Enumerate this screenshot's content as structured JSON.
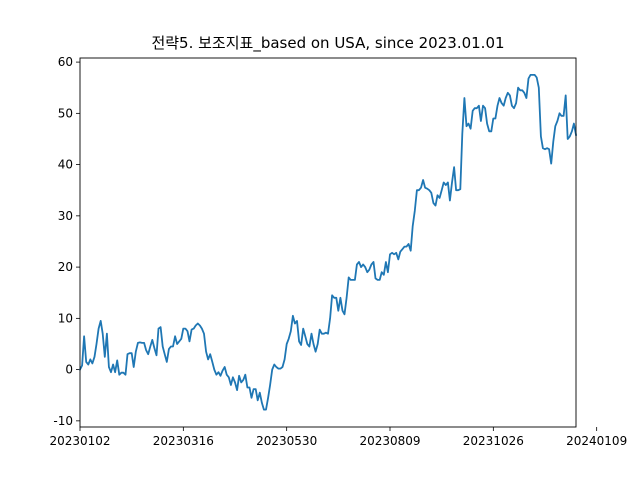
{
  "chart_data": {
    "type": "line",
    "title": "전략5. 보조지표_based on USA, since 2023.01.01",
    "xlabel": "",
    "ylabel": "",
    "grid": false,
    "legend": "none",
    "line_color": "#1f77b4",
    "x_tick_labels": [
      "20230102",
      "20230316",
      "20230530",
      "20230809",
      "20231026",
      "20240109"
    ],
    "x_tick_index": [
      0,
      50,
      100,
      150,
      200,
      250
    ],
    "y_ticks": [
      -10,
      0,
      10,
      20,
      30,
      40,
      50,
      60
    ],
    "ylim": [
      -11.2,
      60.8
    ],
    "series": [
      {
        "values": [
          0.0,
          0.8,
          6.5,
          1.5,
          1.0,
          2.0,
          1.2,
          2.5,
          5.0,
          8.0,
          9.5,
          7.0,
          2.5,
          7.0,
          0.5,
          -0.5,
          1.0,
          -0.5,
          1.8,
          -1.0,
          -0.6,
          -0.6,
          -1.0,
          3.0,
          3.2,
          3.2,
          0.5,
          3.5,
          5.2,
          5.3,
          5.2,
          5.2,
          3.8,
          3.0,
          4.5,
          5.8,
          4.2,
          2.8,
          8.0,
          8.3,
          4.5,
          3.0,
          1.5,
          4.0,
          4.5,
          4.5,
          6.5,
          5.0,
          5.5,
          6.0,
          8.0,
          8.0,
          7.5,
          5.5,
          7.8,
          8.0,
          8.6,
          9.0,
          8.6,
          8.0,
          7.0,
          3.5,
          2.0,
          3.0,
          1.5,
          0.0,
          -1.0,
          -0.5,
          -1.2,
          -0.2,
          0.5,
          -1.0,
          -1.5,
          -3.0,
          -1.5,
          -2.5,
          -4.0,
          -1.2,
          -2.5,
          -2.0,
          -1.0,
          -3.5,
          -3.5,
          -5.5,
          -3.8,
          -3.8,
          -6.0,
          -4.5,
          -6.5,
          -7.8,
          -7.8,
          -5.5,
          -3.0,
          0.0,
          1.0,
          0.5,
          0.2,
          0.2,
          0.5,
          2.0,
          5.0,
          6.0,
          7.5,
          10.5,
          9.0,
          9.5,
          5.5,
          4.8,
          8.0,
          6.5,
          5.0,
          4.5,
          7.0,
          5.0,
          3.5,
          5.0,
          7.8,
          7.0,
          7.0,
          7.2,
          7.0,
          10.0,
          14.5,
          14.0,
          14.0,
          11.5,
          14.0,
          11.5,
          10.8,
          14.0,
          18.0,
          17.5,
          17.5,
          17.5,
          20.5,
          21.0,
          20.0,
          20.5,
          20.0,
          19.0,
          19.5,
          20.5,
          21.0,
          17.8,
          17.5,
          17.5,
          19.0,
          18.5,
          21.0,
          19.0,
          22.5,
          22.8,
          22.5,
          22.8,
          21.5,
          23.0,
          23.5,
          24.0,
          24.0,
          24.5,
          23.2,
          28.0,
          31.0,
          35.0,
          35.0,
          35.5,
          37.0,
          35.5,
          35.3,
          35.0,
          34.5,
          32.5,
          32.0,
          34.0,
          33.5,
          35.0,
          36.5,
          36.0,
          36.5,
          33.0,
          36.5,
          39.5,
          35.0,
          35.0,
          35.2,
          46.0,
          53.0,
          47.5,
          48.0,
          47.0,
          50.5,
          51.0,
          51.0,
          51.5,
          48.5,
          51.5,
          51.0,
          48.0,
          46.5,
          46.5,
          49.0,
          49.0,
          51.5,
          53.0,
          52.0,
          51.5,
          53.0,
          54.0,
          53.5,
          51.5,
          51.0,
          52.0,
          55.0,
          54.5,
          54.5,
          54.0,
          53.0,
          56.8,
          57.5,
          57.5,
          57.5,
          57.0,
          55.0,
          45.5,
          43.2,
          43.0,
          43.2,
          43.0,
          40.2,
          44.5,
          47.5,
          48.5,
          50.0,
          49.5,
          49.5,
          53.5,
          45.0,
          45.5,
          46.5,
          48.0,
          45.8
        ]
      }
    ]
  }
}
